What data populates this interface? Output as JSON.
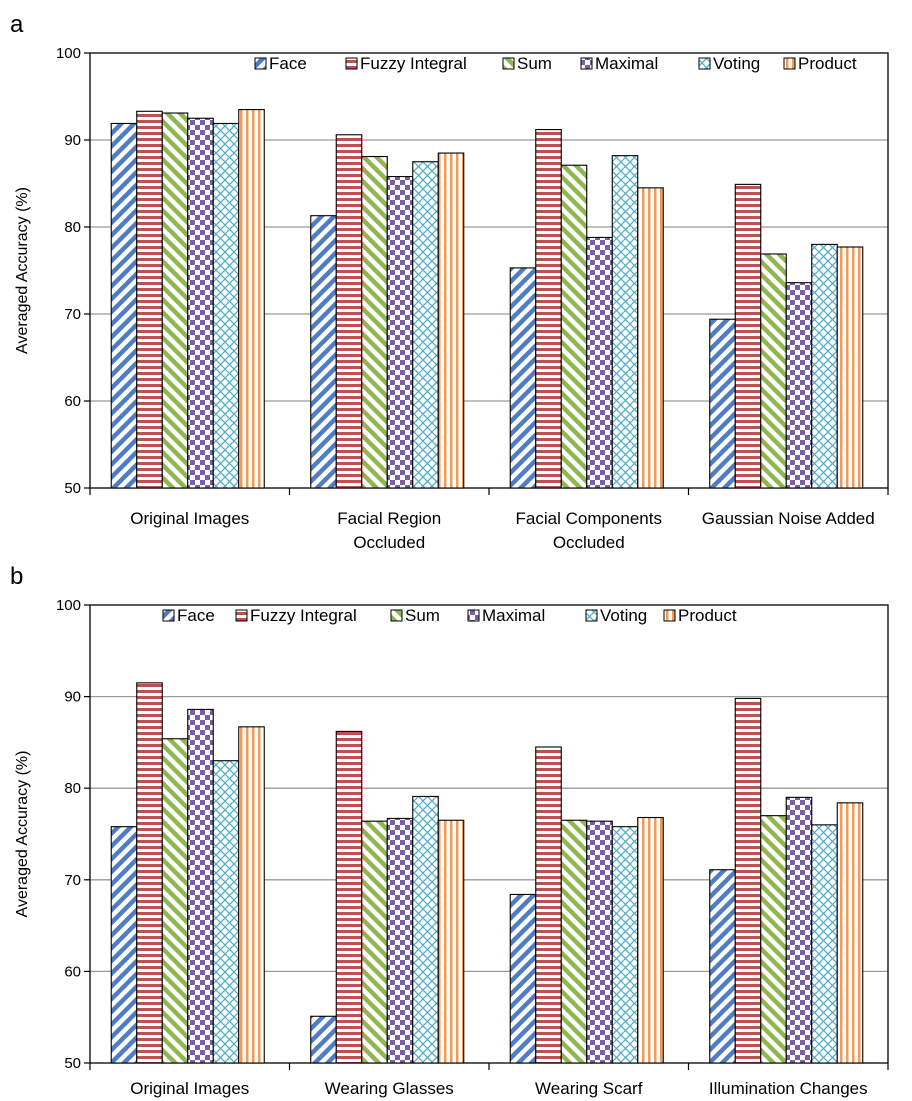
{
  "chart_data": [
    {
      "type": "bar",
      "panel_label": "a",
      "ylabel": "Averaged  Accuracy (%)",
      "xlabel": "",
      "ylim": [
        50,
        100
      ],
      "yticks": [
        50,
        60,
        70,
        80,
        90,
        100
      ],
      "grid": true,
      "legend": "top",
      "categories": [
        [
          "Original Images"
        ],
        [
          "Facial Region",
          "Occluded"
        ],
        [
          "Facial Components",
          "Occluded"
        ],
        [
          "Gaussian Noise Added"
        ]
      ],
      "series": [
        {
          "name": "Face",
          "values": [
            91.9,
            81.3,
            75.3,
            69.4
          ]
        },
        {
          "name": "Fuzzy Integral",
          "values": [
            93.3,
            90.6,
            91.2,
            84.9
          ]
        },
        {
          "name": "Sum",
          "values": [
            93.1,
            88.1,
            87.1,
            76.9
          ]
        },
        {
          "name": "Maximal",
          "values": [
            92.5,
            85.8,
            78.8,
            73.6
          ]
        },
        {
          "name": "Voting",
          "values": [
            91.9,
            87.5,
            88.2,
            78.0
          ]
        },
        {
          "name": "Product",
          "values": [
            93.5,
            88.5,
            84.5,
            77.7
          ]
        }
      ]
    },
    {
      "type": "bar",
      "panel_label": "b",
      "ylabel": "Averaged  Accuracy (%)",
      "xlabel": "",
      "ylim": [
        50,
        100
      ],
      "yticks": [
        50,
        60,
        70,
        80,
        90,
        100
      ],
      "grid": true,
      "legend": "top",
      "categories": [
        [
          "Original Images"
        ],
        [
          "Wearing Glasses"
        ],
        [
          "Wearing Scarf"
        ],
        [
          "Illumination Changes"
        ]
      ],
      "series": [
        {
          "name": "Face",
          "values": [
            75.8,
            55.1,
            68.4,
            71.1
          ]
        },
        {
          "name": "Fuzzy Integral",
          "values": [
            91.5,
            86.2,
            84.5,
            89.8
          ]
        },
        {
          "name": "Sum",
          "values": [
            85.4,
            76.4,
            76.5,
            77.0
          ]
        },
        {
          "name": "Maximal",
          "values": [
            88.6,
            76.7,
            76.4,
            79.0
          ]
        },
        {
          "name": "Voting",
          "values": [
            83.0,
            79.1,
            75.8,
            76.0
          ]
        },
        {
          "name": "Product",
          "values": [
            86.7,
            76.5,
            76.8,
            78.4
          ]
        }
      ]
    }
  ]
}
